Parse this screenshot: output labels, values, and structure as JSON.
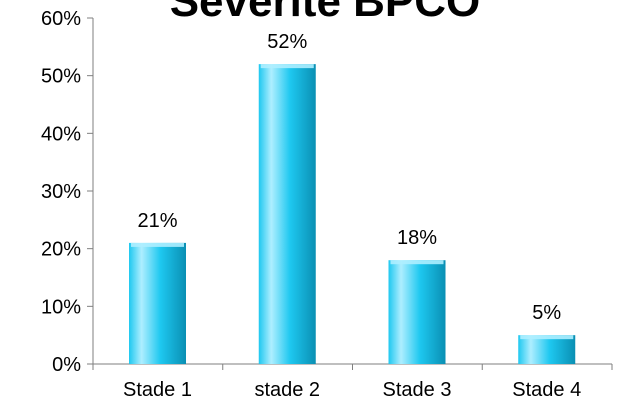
{
  "chart_data": {
    "type": "bar",
    "title": "Sévérité BPCO",
    "xlabel": "",
    "ylabel": "",
    "categories": [
      "Stade 1",
      "stade 2",
      "Stade 3",
      "Stade 4"
    ],
    "values": [
      21,
      52,
      18,
      5
    ],
    "data_labels": [
      "21%",
      "52%",
      "18%",
      "5%"
    ],
    "ylim": [
      0,
      60
    ],
    "y_ticks": [
      0,
      10,
      20,
      30,
      40,
      50,
      60
    ],
    "y_tick_labels": [
      "0%",
      "10%",
      "20%",
      "30%",
      "40%",
      "50%",
      "60%"
    ],
    "grid": false,
    "legend": "none",
    "bar_color": "#1ec8f0",
    "bar_highlight_color": "#aeeeff",
    "bar_edge_color": "#0a8fb3"
  }
}
